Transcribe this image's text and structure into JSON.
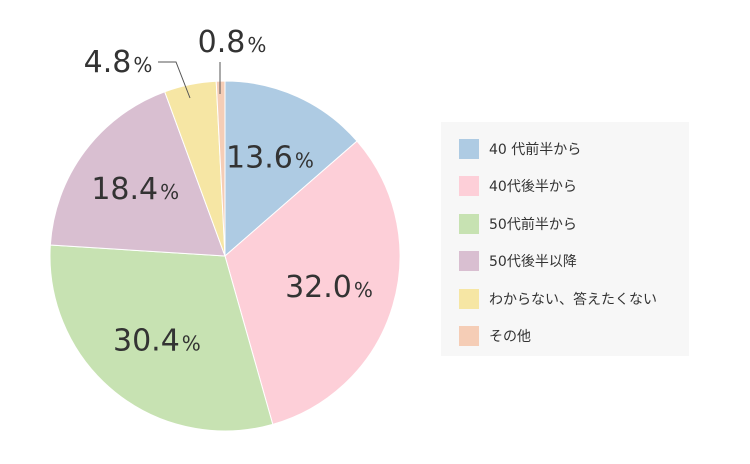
{
  "chart_data": {
    "type": "pie",
    "categories": [
      "40 代前半から",
      "40代後半から",
      "50代前半から",
      "50代後半以降",
      "わからない、答えたくない",
      "その他"
    ],
    "values": [
      13.6,
      32.0,
      30.4,
      18.4,
      4.8,
      0.8
    ],
    "value_labels": [
      "13.6",
      "32.0",
      "30.4",
      "18.4",
      "4.8",
      "0.8"
    ],
    "unit": "%",
    "colors": [
      "#aecbe3",
      "#fdcfd8",
      "#c7e2b2",
      "#d9bfd1",
      "#f6e6a4",
      "#f5cdb6"
    ],
    "start_angle_deg": 0,
    "direction": "clockwise",
    "legend_placement": "right"
  },
  "legend": {
    "items": [
      {
        "label": "40 代前半から",
        "color": "#aecbe3"
      },
      {
        "label": "40代後半から",
        "color": "#fdcfd8"
      },
      {
        "label": "50代前半から",
        "color": "#c7e2b2"
      },
      {
        "label": "50代後半以降",
        "color": "#d9bfd1"
      },
      {
        "label": "わからない、答えたくない",
        "color": "#f6e6a4"
      },
      {
        "label": "その他",
        "color": "#f5cdb6"
      }
    ]
  }
}
